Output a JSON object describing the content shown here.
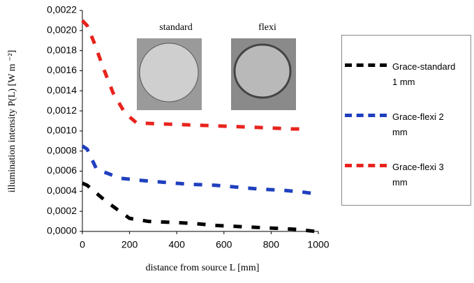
{
  "chart_data": {
    "type": "line",
    "xlabel": "distance from source L [mm]",
    "ylabel": "illumination intensity P(L)  [W m ⁻²]",
    "annotations": [
      "standard",
      "flexi"
    ],
    "xlim": [
      0,
      1000
    ],
    "xticks": [
      0,
      200,
      400,
      600,
      800,
      1000
    ],
    "ylim": [
      0,
      0.0022
    ],
    "yticks": [
      {
        "value": 0,
        "label": "0,0000"
      },
      {
        "value": 0.0002,
        "label": "0,0002"
      },
      {
        "value": 0.0004,
        "label": "0,0004"
      },
      {
        "value": 0.0006,
        "label": "0,0006"
      },
      {
        "value": 0.0008,
        "label": "0,0008"
      },
      {
        "value": 0.001,
        "label": "0,0010"
      },
      {
        "value": 0.0012,
        "label": "0,0012"
      },
      {
        "value": 0.0014,
        "label": "0,0014"
      },
      {
        "value": 0.0016,
        "label": "0,0016"
      },
      {
        "value": 0.0018,
        "label": "0,0018"
      },
      {
        "value": 0.002,
        "label": "0,0020"
      },
      {
        "value": 0.0022,
        "label": "0,0022"
      }
    ],
    "series": [
      {
        "name": "Grace-standard 1 mm",
        "color": "#000000",
        "x": [
          0,
          20,
          100,
          200,
          280,
          380,
          470,
          560,
          650,
          740,
          830,
          910,
          990
        ],
        "values": [
          0.00048,
          0.00046,
          0.0003,
          0.00013,
          0.0001,
          9e-05,
          8e-05,
          6e-05,
          5e-05,
          4e-05,
          3e-05,
          2e-05,
          0
        ]
      },
      {
        "name": "Grace-flexi 2 mm",
        "color": "#1f3fbf",
        "x": [
          0,
          20,
          60,
          160,
          240,
          340,
          450,
          560,
          660,
          760,
          850,
          940,
          1000
        ],
        "values": [
          0.00085,
          0.00082,
          0.00062,
          0.00053,
          0.00051,
          0.00049,
          0.00047,
          0.00046,
          0.00044,
          0.00042,
          0.00041,
          0.00039,
          0.00037
        ]
      },
      {
        "name": "Grace-flexi 3 mm",
        "color": "#e8231c",
        "x": [
          0,
          20,
          50,
          90,
          130,
          180,
          230,
          340,
          460,
          580,
          690,
          800,
          890,
          960
        ],
        "values": [
          0.0021,
          0.00205,
          0.00188,
          0.00162,
          0.00138,
          0.00118,
          0.00108,
          0.00107,
          0.00106,
          0.00105,
          0.00104,
          0.00103,
          0.00102,
          0.00102
        ]
      }
    ]
  }
}
